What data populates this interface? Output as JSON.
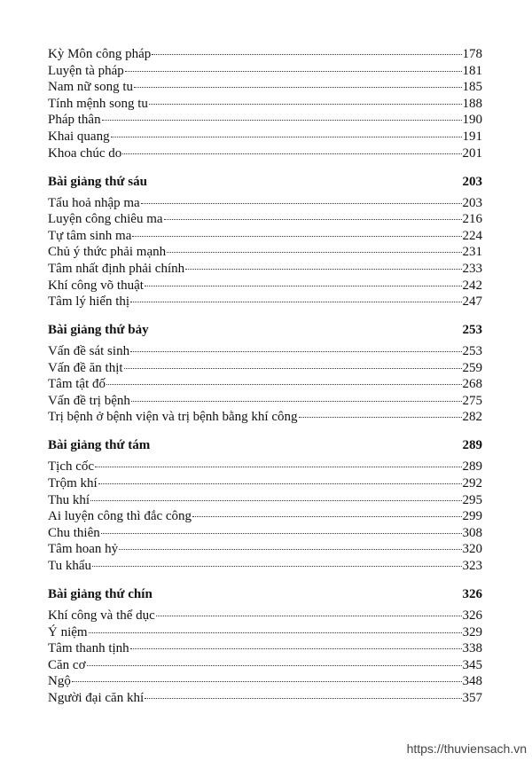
{
  "sections": [
    {
      "title": "",
      "page": "",
      "entries": [
        {
          "title": "Kỳ Môn công pháp",
          "page": "178"
        },
        {
          "title": "Luyện tà pháp",
          "page": "181"
        },
        {
          "title": "Nam nữ song tu",
          "page": "185"
        },
        {
          "title": "Tính mệnh song tu",
          "page": "188"
        },
        {
          "title": "Pháp thân",
          "page": "190"
        },
        {
          "title": "Khai quang",
          "page": "191"
        },
        {
          "title": "Khoa chúc do",
          "page": "201"
        }
      ]
    },
    {
      "title": "Bài giảng thứ sáu",
      "page": "203",
      "entries": [
        {
          "title": "Tẩu hoả nhập ma",
          "page": "203"
        },
        {
          "title": "Luyện công chiêu ma",
          "page": "216"
        },
        {
          "title": "Tự tâm sinh ma",
          "page": "224"
        },
        {
          "title": "Chủ ý thức phải mạnh",
          "page": "231"
        },
        {
          "title": "Tâm nhất định phải chính",
          "page": "233"
        },
        {
          "title": "Khí công võ thuật",
          "page": "242"
        },
        {
          "title": "Tâm lý hiển thị",
          "page": "247"
        }
      ]
    },
    {
      "title": "Bài giảng thứ bảy",
      "page": "253",
      "entries": [
        {
          "title": "Vấn đề sát sinh",
          "page": "253"
        },
        {
          "title": "Vấn đề ăn thịt",
          "page": "259"
        },
        {
          "title": "Tâm tật đố",
          "page": "268"
        },
        {
          "title": "Vấn đề trị bệnh",
          "page": "275"
        },
        {
          "title": "Trị bệnh ở bệnh viện và trị bệnh bằng khí công",
          "page": "282"
        }
      ]
    },
    {
      "title": "Bài giảng thứ tám",
      "page": "289",
      "entries": [
        {
          "title": "Tịch cốc",
          "page": "289"
        },
        {
          "title": "Trộm khí",
          "page": "292"
        },
        {
          "title": "Thu khí",
          "page": "295"
        },
        {
          "title": "Ai luyện công thì đắc công",
          "page": "299"
        },
        {
          "title": "Chu thiên",
          "page": "308"
        },
        {
          "title": "Tâm hoan hỷ",
          "page": "320"
        },
        {
          "title": "Tu khẩu",
          "page": "323"
        }
      ]
    },
    {
      "title": "Bài giảng thứ chín",
      "page": "326",
      "entries": [
        {
          "title": "Khí công và thể dục",
          "page": "326"
        },
        {
          "title": "Ý niệm",
          "page": "329"
        },
        {
          "title": "Tâm thanh tịnh",
          "page": "338"
        },
        {
          "title": "Căn cơ",
          "page": "345"
        },
        {
          "title": "Ngộ",
          "page": "348"
        },
        {
          "title": "Người đại căn khí",
          "page": "357"
        }
      ]
    }
  ],
  "watermark": "https://thuviensach.vn"
}
